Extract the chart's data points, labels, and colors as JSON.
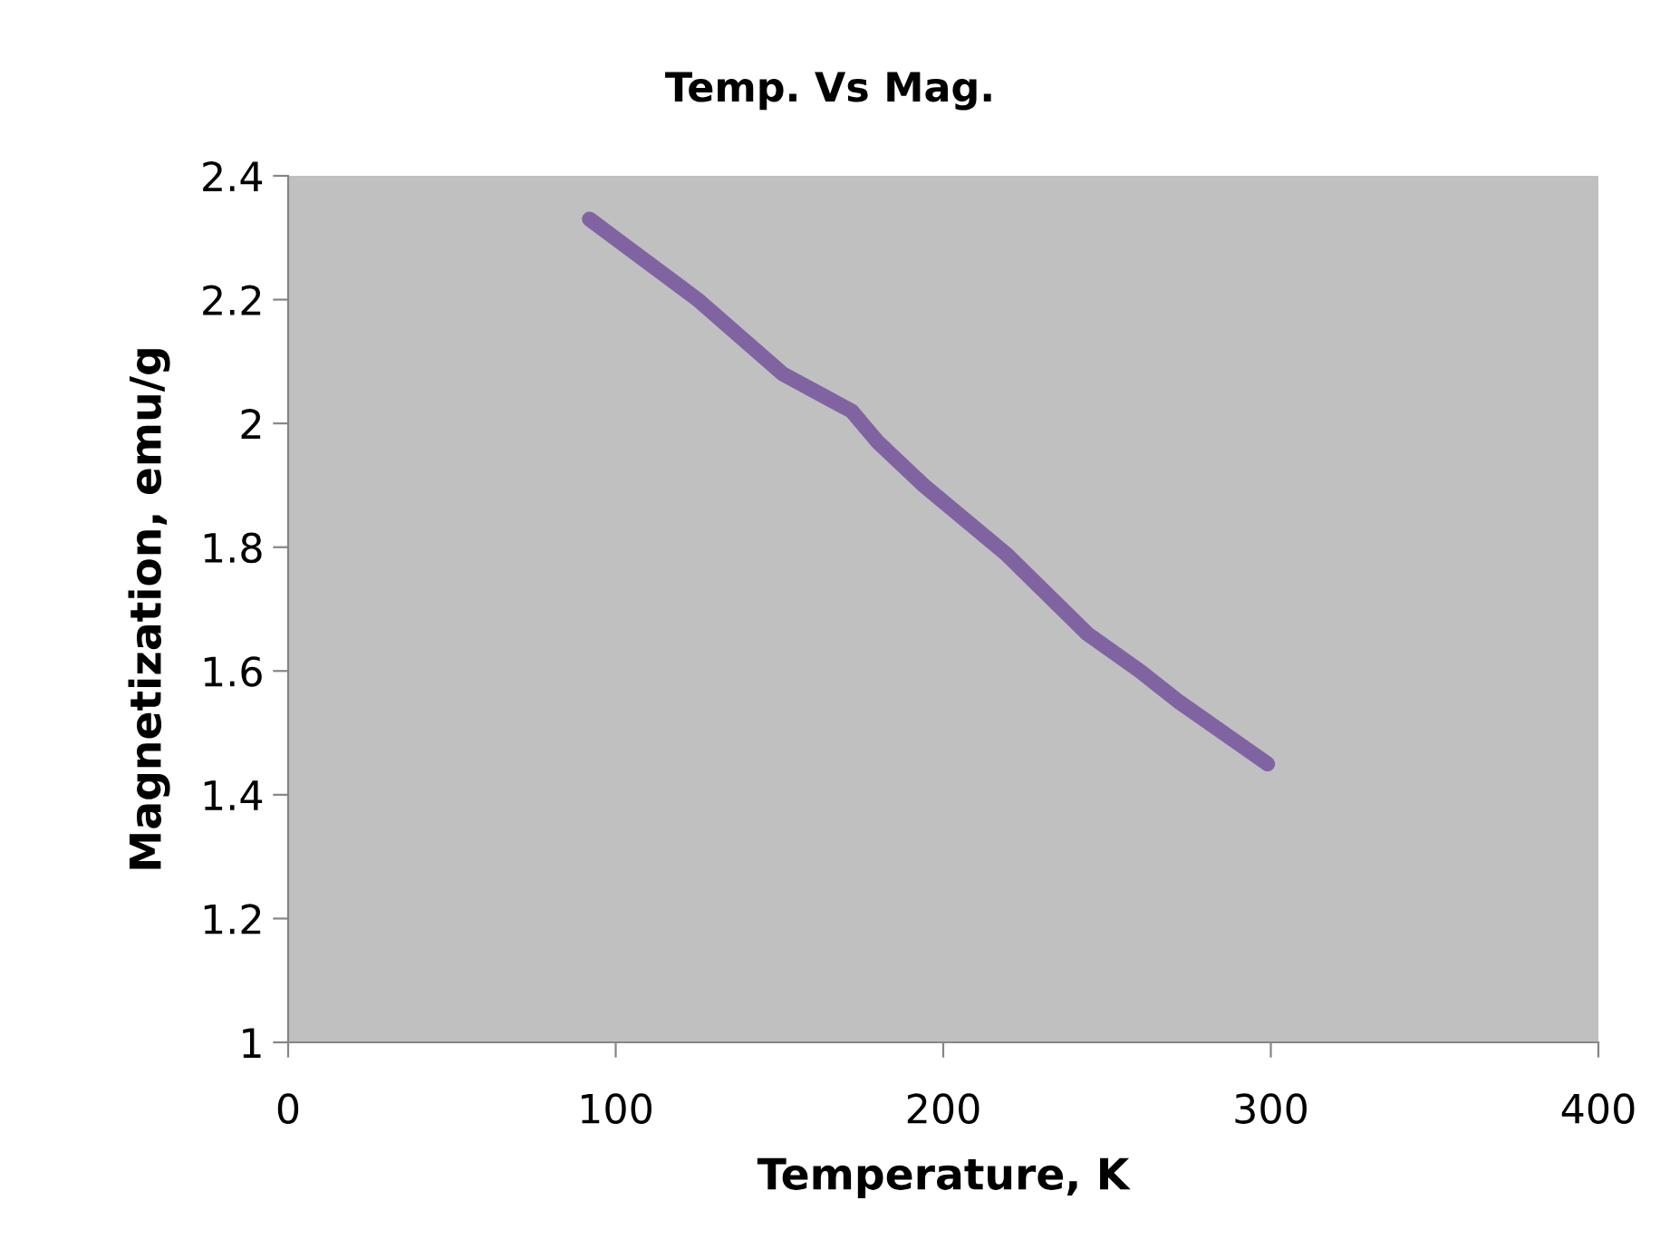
{
  "chart_data": {
    "type": "line",
    "title": "Temp. Vs Mag.",
    "xlabel": "Temperature, K",
    "ylabel": "Magnetization, emu/g",
    "xlim": [
      0,
      400
    ],
    "xticks": [
      0,
      100,
      200,
      300,
      400
    ],
    "ylim": [
      1,
      2.4
    ],
    "yticks": [
      1,
      1.2,
      1.4,
      1.6,
      1.8,
      2,
      2.2,
      2.4
    ],
    "grid": false,
    "legend": false,
    "marker": "none",
    "line_style": "solid",
    "series": [
      {
        "color": "#8064a2",
        "x": [
          92,
          125,
          151,
          165,
          172,
          180,
          194,
          219,
          244,
          260,
          272,
          299
        ],
        "values": [
          2.33,
          2.2,
          2.08,
          2.04,
          2.02,
          1.97,
          1.9,
          1.79,
          1.66,
          1.6,
          1.55,
          1.45
        ]
      }
    ]
  }
}
